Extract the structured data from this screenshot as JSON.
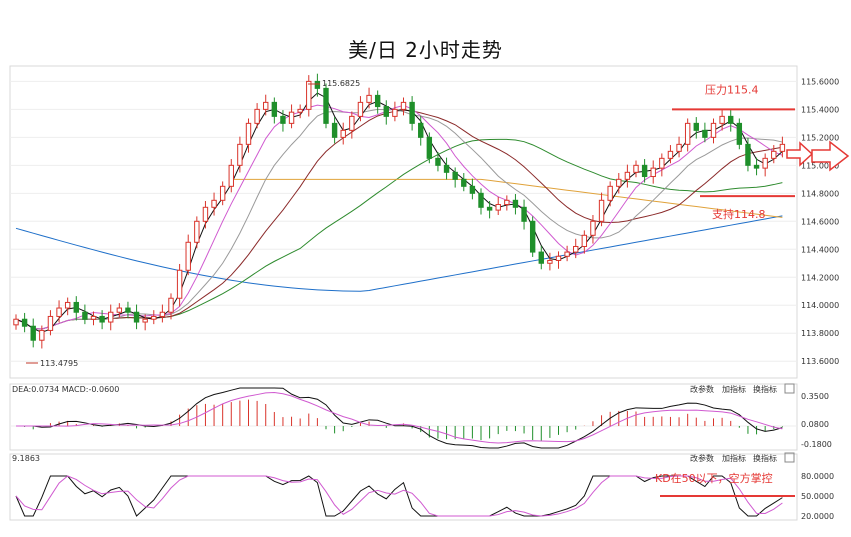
{
  "title": "美/日 2小时走势",
  "chart_data": [
    {
      "type": "candlestick",
      "title": "美/日 2小时走势",
      "y_ticks": [
        115.6,
        115.4,
        115.2,
        115.0,
        114.8,
        114.6,
        114.4,
        114.2,
        114.0,
        113.8,
        113.6
      ],
      "y_tick_labels": [
        "115.6000",
        "115.4000",
        "115.2000",
        "115.0000",
        "114.8000",
        "114.6000",
        "114.4000",
        "114.2000",
        "114.0000",
        "113.8000",
        "113.6000"
      ],
      "ylim": [
        113.48,
        115.71
      ],
      "high_marker": "115.6825",
      "low_marker": "113.4795",
      "resistance": {
        "label": "压力115.4",
        "value": 115.4
      },
      "support": {
        "label": "支持114.8",
        "value": 114.78
      },
      "close_path": [
        113.9,
        113.85,
        113.75,
        113.82,
        113.92,
        113.98,
        114.02,
        113.95,
        113.9,
        113.92,
        113.88,
        113.95,
        113.98,
        113.95,
        113.88,
        113.9,
        113.92,
        113.95,
        114.05,
        114.25,
        114.45,
        114.6,
        114.7,
        114.75,
        114.85,
        115.0,
        115.15,
        115.3,
        115.4,
        115.45,
        115.35,
        115.3,
        115.38,
        115.4,
        115.6,
        115.55,
        115.3,
        115.2,
        115.25,
        115.35,
        115.45,
        115.5,
        115.42,
        115.35,
        115.4,
        115.45,
        115.3,
        115.2,
        115.05,
        115.0,
        114.95,
        114.9,
        114.85,
        114.8,
        114.7,
        114.68,
        114.72,
        114.75,
        114.7,
        114.6,
        114.38,
        114.3,
        114.32,
        114.35,
        114.38,
        114.42,
        114.5,
        114.6,
        114.75,
        114.85,
        114.9,
        114.95,
        115.0,
        114.92,
        114.98,
        115.05,
        115.1,
        115.15,
        115.3,
        115.25,
        115.2,
        115.3,
        115.35,
        115.3,
        115.15,
        115.0,
        114.98,
        115.05,
        115.1,
        115.15
      ]
    },
    {
      "type": "macd",
      "header": "DEA:0.0734  MACD:-0.0600",
      "buttons": [
        "改参数",
        "加指标",
        "换指标"
      ],
      "y_tick_labels": [
        "0.3500",
        "0.0800",
        "-0.1800"
      ]
    },
    {
      "type": "kd",
      "header": "9.1863",
      "buttons": [
        "改参数",
        "加指标",
        "换指标"
      ],
      "y_tick_labels": [
        "80.0000",
        "50.0000",
        "20.0000"
      ],
      "annotation": "KD在50以下，空方掌控",
      "annotation_value": 50
    }
  ]
}
